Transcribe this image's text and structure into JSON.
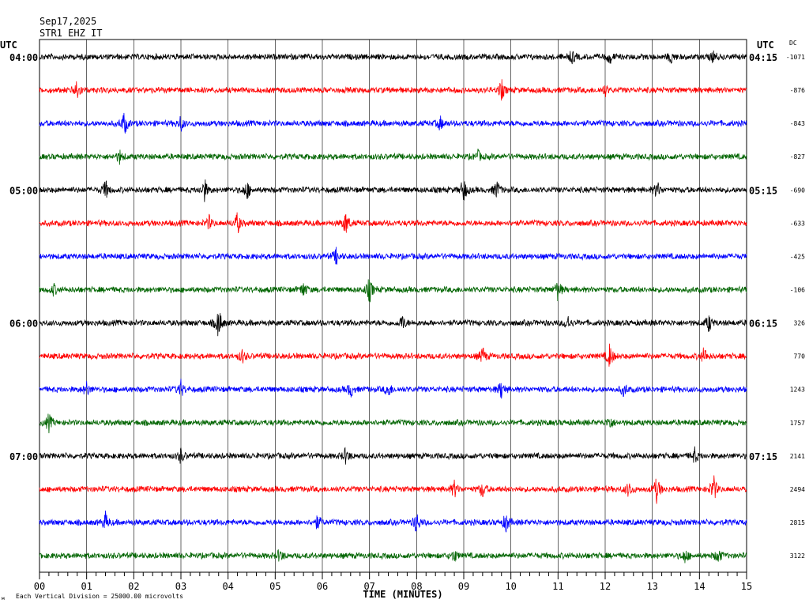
{
  "header": {
    "date": "Sep17,2025",
    "station": "STR1 EHZ IT"
  },
  "chart_data": {
    "type": "line",
    "title": "Sep17,2025",
    "subtitle": "STR1 EHZ IT",
    "xlabel": "TIME (MINUTES)",
    "xlim": [
      0,
      15
    ],
    "x_ticks": [
      "00",
      "01",
      "02",
      "03",
      "04",
      "05",
      "06",
      "07",
      "08",
      "09",
      "10",
      "11",
      "12",
      "13",
      "14",
      "15"
    ],
    "left_axis_label": "UTC",
    "right_axis_label": "UTC",
    "dc_label": "DC",
    "footer_note": "Each Vertical Division = 25000.00 microvolts",
    "trace_colors": [
      "#000000",
      "#ff0000",
      "#0000ff",
      "#006400"
    ],
    "left_time_labels": [
      {
        "trace": 0,
        "text": "04:00"
      },
      {
        "trace": 4,
        "text": "05:00"
      },
      {
        "trace": 8,
        "text": "06:00"
      },
      {
        "trace": 12,
        "text": "07:00"
      }
    ],
    "right_time_labels": [
      {
        "trace": 0,
        "text": "04:15"
      },
      {
        "trace": 4,
        "text": "05:15"
      },
      {
        "trace": 8,
        "text": "06:15"
      },
      {
        "trace": 12,
        "text": "07:15"
      }
    ],
    "dc_offsets": [
      "-1071",
      "-876",
      "-843",
      "-827",
      "-690",
      "-633",
      "-425",
      "-106",
      "326",
      "770",
      "1243",
      "1757",
      "2141",
      "2494",
      "2815",
      "3122"
    ],
    "traces": [
      {
        "events": [
          {
            "minute": 11.3,
            "amp": 1.2
          },
          {
            "minute": 12.1,
            "amp": 1.2
          },
          {
            "minute": 13.4,
            "amp": 1.1
          },
          {
            "minute": 14.3,
            "amp": 1.0
          }
        ]
      },
      {
        "events": [
          {
            "minute": 0.8,
            "amp": 2.2
          },
          {
            "minute": 9.8,
            "amp": 1.8
          },
          {
            "minute": 12.0,
            "amp": 1.0
          }
        ]
      },
      {
        "events": [
          {
            "minute": 1.8,
            "amp": 2.2
          },
          {
            "minute": 3.0,
            "amp": 1.4
          },
          {
            "minute": 8.5,
            "amp": 1.2
          }
        ]
      },
      {
        "events": [
          {
            "minute": 1.7,
            "amp": 1.1
          },
          {
            "minute": 9.3,
            "amp": 1.0
          }
        ]
      },
      {
        "events": [
          {
            "minute": 1.4,
            "amp": 1.8
          },
          {
            "minute": 3.5,
            "amp": 2.0
          },
          {
            "minute": 4.4,
            "amp": 1.8
          },
          {
            "minute": 9.0,
            "amp": 2.4
          },
          {
            "minute": 9.7,
            "amp": 1.8
          },
          {
            "minute": 13.1,
            "amp": 1.6
          }
        ]
      },
      {
        "events": [
          {
            "minute": 3.6,
            "amp": 1.2
          },
          {
            "minute": 4.2,
            "amp": 2.0
          },
          {
            "minute": 6.5,
            "amp": 2.2
          }
        ]
      },
      {
        "events": [
          {
            "minute": 6.3,
            "amp": 1.5
          }
        ]
      },
      {
        "events": [
          {
            "minute": 0.3,
            "amp": 1.0
          },
          {
            "minute": 5.6,
            "amp": 1.4
          },
          {
            "minute": 7.0,
            "amp": 2.4
          },
          {
            "minute": 11.0,
            "amp": 2.0
          }
        ]
      },
      {
        "events": [
          {
            "minute": 3.8,
            "amp": 3.0
          },
          {
            "minute": 7.7,
            "amp": 1.4
          },
          {
            "minute": 11.2,
            "amp": 1.5
          },
          {
            "minute": 14.2,
            "amp": 1.6
          }
        ]
      },
      {
        "events": [
          {
            "minute": 4.3,
            "amp": 1.2
          },
          {
            "minute": 9.4,
            "amp": 1.6
          },
          {
            "minute": 12.1,
            "amp": 2.4
          },
          {
            "minute": 14.1,
            "amp": 1.6
          }
        ]
      },
      {
        "events": [
          {
            "minute": 1.0,
            "amp": 1.3
          },
          {
            "minute": 3.0,
            "amp": 1.5
          },
          {
            "minute": 6.6,
            "amp": 1.4
          },
          {
            "minute": 7.4,
            "amp": 1.4
          },
          {
            "minute": 9.8,
            "amp": 1.7
          },
          {
            "minute": 12.4,
            "amp": 1.2
          }
        ]
      },
      {
        "events": [
          {
            "minute": 0.2,
            "amp": 1.6
          },
          {
            "minute": 12.1,
            "amp": 1.2
          }
        ]
      },
      {
        "events": [
          {
            "minute": 3.0,
            "amp": 1.3
          },
          {
            "minute": 6.5,
            "amp": 1.5
          },
          {
            "minute": 13.9,
            "amp": 1.4
          }
        ]
      },
      {
        "events": [
          {
            "minute": 8.8,
            "amp": 1.5
          },
          {
            "minute": 9.4,
            "amp": 1.5
          },
          {
            "minute": 12.5,
            "amp": 1.4
          },
          {
            "minute": 13.1,
            "amp": 2.6
          },
          {
            "minute": 14.3,
            "amp": 2.6
          }
        ]
      },
      {
        "events": [
          {
            "minute": 1.4,
            "amp": 1.6
          },
          {
            "minute": 5.9,
            "amp": 1.3
          },
          {
            "minute": 8.0,
            "amp": 2.0
          },
          {
            "minute": 9.9,
            "amp": 1.8
          }
        ]
      },
      {
        "events": [
          {
            "minute": 5.1,
            "amp": 1.2
          },
          {
            "minute": 8.8,
            "amp": 1.2
          },
          {
            "minute": 13.7,
            "amp": 1.3
          },
          {
            "minute": 14.4,
            "amp": 1.4
          }
        ]
      }
    ]
  }
}
